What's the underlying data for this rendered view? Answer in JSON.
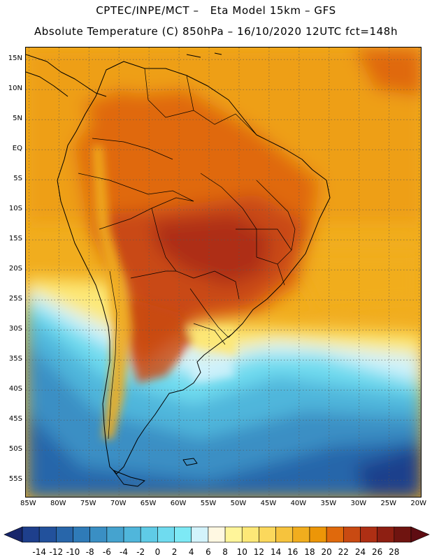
{
  "title": {
    "line1": "CPTEC/INPE/MCT –   Eta Model 15km – GFS",
    "line2": "Absolute Temperature (C) 850hPa – 16/10/2020 12UTC fct=148h"
  },
  "map": {
    "lat_ticks": [
      "15N",
      "10N",
      "5N",
      "EQ",
      "5S",
      "10S",
      "15S",
      "20S",
      "25S",
      "30S",
      "35S",
      "40S",
      "45S",
      "50S",
      "55S"
    ],
    "lat_values": [
      15,
      10,
      5,
      0,
      -5,
      -10,
      -15,
      -20,
      -25,
      -30,
      -35,
      -40,
      -45,
      -50,
      -55
    ],
    "lon_ticks": [
      "85W",
      "80W",
      "75W",
      "70W",
      "65W",
      "60W",
      "55W",
      "50W",
      "45W",
      "40W",
      "35W",
      "30W",
      "25W",
      "20W"
    ],
    "lon_values": [
      -85,
      -80,
      -75,
      -70,
      -65,
      -60,
      -55,
      -50,
      -45,
      -40,
      -35,
      -30,
      -25,
      -20
    ],
    "extent": {
      "lon_min": -85.5,
      "lon_max": -19.5,
      "lat_min": -58,
      "lat_max": 17
    },
    "grid": "dotted"
  },
  "colorbar": {
    "labels": [
      "-14",
      "-12",
      "-10",
      "-8",
      "-6",
      "-4",
      "-2",
      "0",
      "2",
      "4",
      "6",
      "8",
      "10",
      "12",
      "14",
      "16",
      "18",
      "20",
      "22",
      "24",
      "26",
      "28"
    ],
    "colors": [
      "#1e3f8c",
      "#22519c",
      "#2866aa",
      "#2f7bb8",
      "#3a8fc4",
      "#45a3cf",
      "#50b6db",
      "#5fcbe6",
      "#6fdbef",
      "#7de9f5",
      "#d3f3fb",
      "#fff8e2",
      "#fff59a",
      "#fde877",
      "#fbd85c",
      "#f6c33d",
      "#f1ad1e",
      "#ec9608",
      "#e0690c",
      "#c94a12",
      "#ae2f14",
      "#8e1f12",
      "#6f1410"
    ],
    "under_color": "#17266b",
    "over_color": "#5e0c12"
  }
}
